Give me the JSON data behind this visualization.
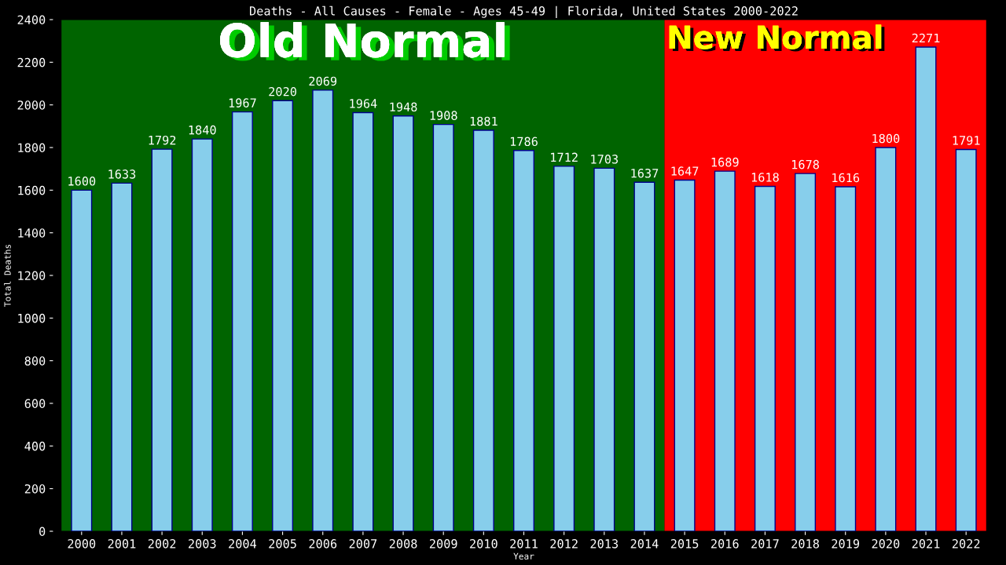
{
  "chart_data": {
    "type": "bar",
    "title": "Deaths - All Causes - Female - Ages 45-49 | Florida, United States 2000-2022",
    "xlabel": "Year",
    "ylabel": "Total Deaths",
    "categories": [
      "2000",
      "2001",
      "2002",
      "2003",
      "2004",
      "2005",
      "2006",
      "2007",
      "2008",
      "2009",
      "2010",
      "2011",
      "2012",
      "2013",
      "2014",
      "2015",
      "2016",
      "2017",
      "2018",
      "2019",
      "2020",
      "2021",
      "2022"
    ],
    "values": [
      1600,
      1633,
      1792,
      1840,
      1967,
      2020,
      2069,
      1964,
      1948,
      1908,
      1881,
      1786,
      1712,
      1703,
      1637,
      1647,
      1689,
      1618,
      1678,
      1616,
      1800,
      2271,
      1791
    ],
    "color": "#87ceeb",
    "ylim": [
      0,
      2400
    ],
    "yticks": [
      0,
      200,
      400,
      600,
      800,
      1000,
      1200,
      1400,
      1600,
      1800,
      2000,
      2200,
      2400
    ],
    "data_labels": true,
    "grid": false,
    "legend": false,
    "bands": [
      {
        "axis": "x",
        "from": "2000",
        "to": "2014",
        "label": "Old Normal",
        "color": "#006400"
      },
      {
        "axis": "x",
        "from": "2015",
        "to": "2022",
        "label": "New Normal",
        "color": "#ff0000"
      }
    ]
  }
}
